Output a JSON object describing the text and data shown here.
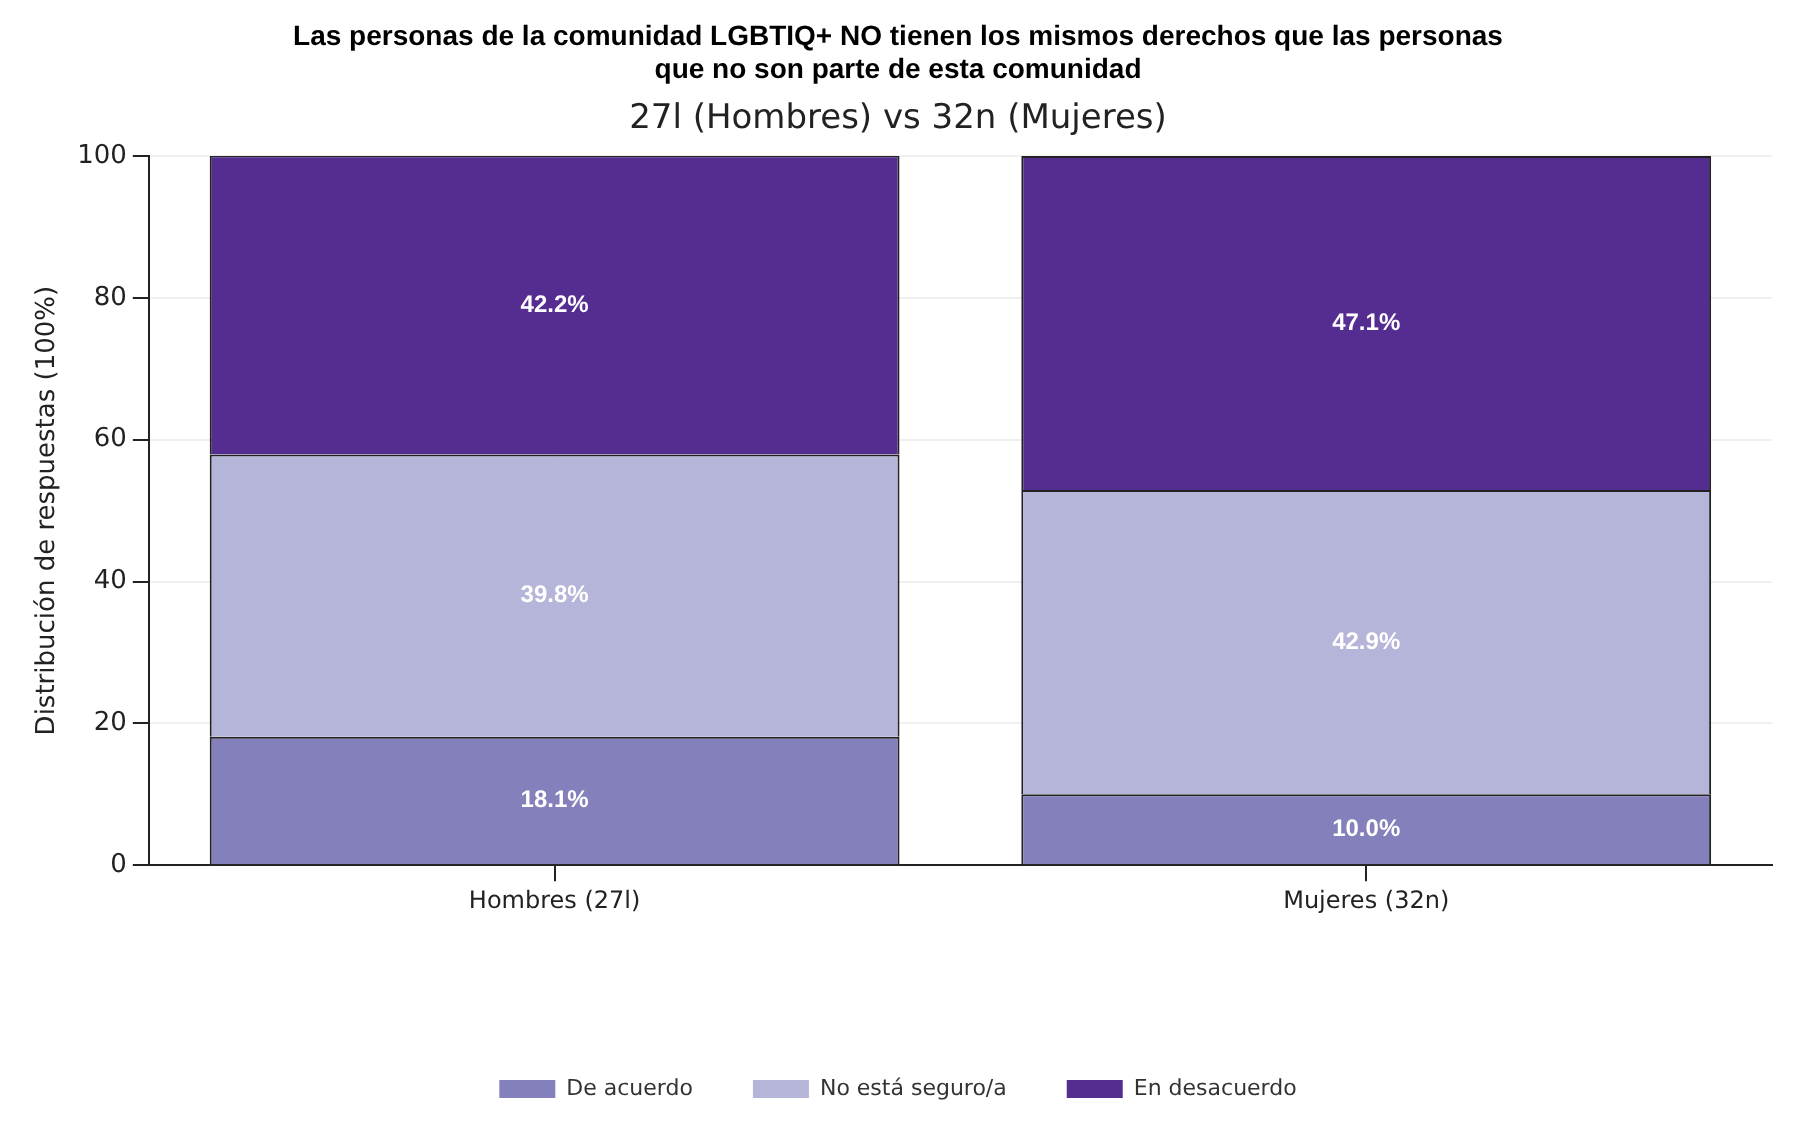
{
  "chart_data": {
    "type": "bar",
    "title": "Las personas de la comunidad LGBTIQ+ NO tienen los mismos derechos que las personas que no son parte de esta comunidad",
    "subtitle": "27l (Hombres) vs 32n (Mujeres)",
    "ylabel": "Distribución de respuestas (100%)",
    "categories": [
      "Hombres (27l)",
      "Mujeres (32n)"
    ],
    "stacked": true,
    "ylim": [
      0,
      100
    ],
    "yticks": [
      0,
      20,
      40,
      60,
      80,
      100
    ],
    "grid": true,
    "legend": "bottom",
    "series": [
      {
        "name": "De acuerdo",
        "color": "#8480bb",
        "values": [
          18.1,
          10.0
        ],
        "value_labels": [
          "18.1%",
          "10.0%"
        ]
      },
      {
        "name": "No está seguro/a",
        "color": "#b5b5d9",
        "values": [
          39.8,
          42.9
        ],
        "value_labels": [
          "39.8%",
          "42.9%"
        ]
      },
      {
        "name": "En desacuerdo",
        "color": "#552d91",
        "values": [
          42.2,
          47.1
        ],
        "value_labels": [
          "42.2%",
          "47.1%"
        ]
      }
    ]
  }
}
